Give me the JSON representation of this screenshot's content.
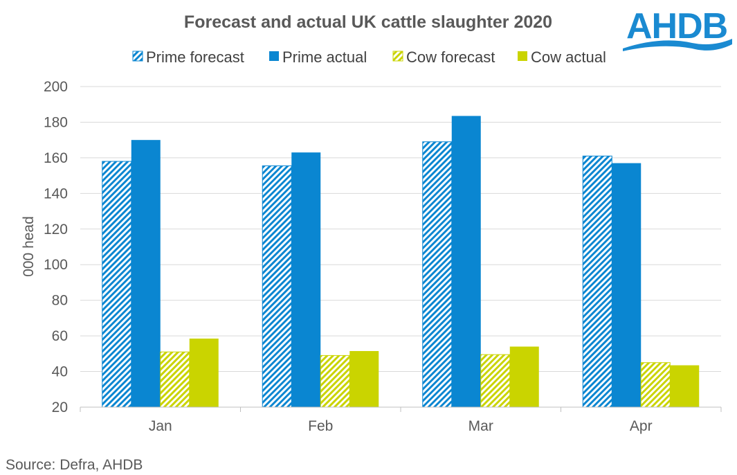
{
  "chart_data": {
    "type": "bar",
    "title": "Forecast and actual UK cattle slaughter 2020",
    "categories": [
      "Jan",
      "Feb",
      "Mar",
      "Apr"
    ],
    "series": [
      {
        "name": "Prime forecast",
        "values": [
          158,
          155.5,
          169,
          161
        ],
        "color": "#0a86d1",
        "pattern": "hatched"
      },
      {
        "name": "Prime actual",
        "values": [
          170,
          163,
          183.5,
          157
        ],
        "color": "#0a86d1",
        "pattern": "solid"
      },
      {
        "name": "Cow forecast",
        "values": [
          51,
          49,
          49.5,
          45
        ],
        "color": "#cad400",
        "pattern": "hatched"
      },
      {
        "name": "Cow actual",
        "values": [
          58.5,
          51.5,
          54,
          43.5
        ],
        "color": "#cad400",
        "pattern": "solid"
      }
    ],
    "xlabel": "",
    "ylabel": "000 head",
    "ylim": [
      20,
      200
    ],
    "yticks": [
      20,
      40,
      60,
      80,
      100,
      120,
      140,
      160,
      180,
      200
    ],
    "grid": true,
    "legend": "top"
  },
  "source": "Source: Defra, AHDB",
  "logo": {
    "text": "AHDB",
    "color": "#1a8ad1"
  }
}
